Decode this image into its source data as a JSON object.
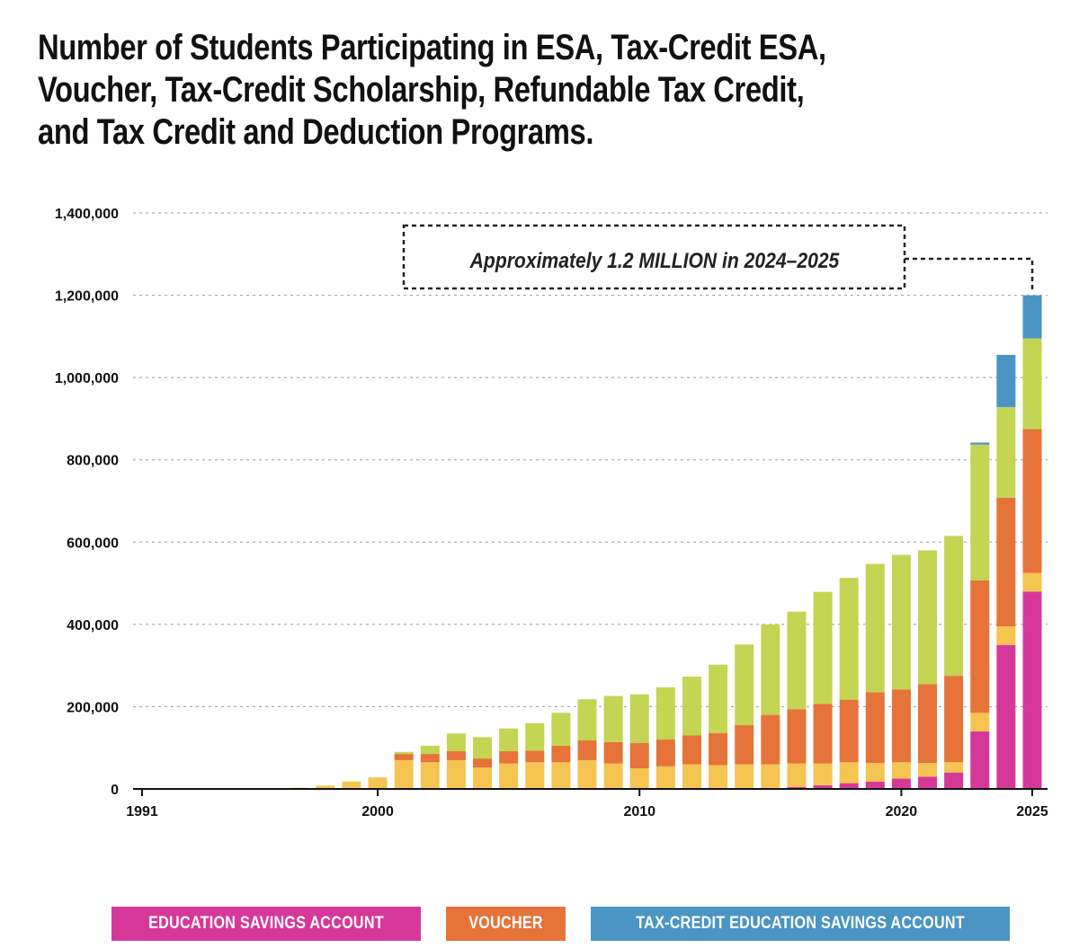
{
  "title": {
    "lines": [
      "Number of Students Participating in ESA, Tax-Credit ESA,",
      "Voucher, Tax-Credit Scholarship, Refundable Tax Credit,",
      "and Tax Credit and Deduction Programs."
    ]
  },
  "annotation": {
    "text": "Approximately 1.2 MILLION in 2024–2025"
  },
  "legend": {
    "items": [
      {
        "label": "EDUCATION SAVINGS ACCOUNT",
        "color": "#d6389a"
      },
      {
        "label": "VOUCHER",
        "color": "#e5733a"
      },
      {
        "label": "TAX-CREDIT EDUCATION SAVINGS ACCOUNT",
        "color": "#4a95c3"
      }
    ]
  },
  "chart_data": {
    "type": "bar",
    "stacked": true,
    "x_tick_labels": [
      "1991",
      "2000",
      "2010",
      "2020",
      "2025"
    ],
    "y_tick_labels": [
      "0",
      "200,000",
      "400,000",
      "600,000",
      "800,000",
      "1,000,000",
      "1,200,000",
      "1,400,000"
    ],
    "ylim": [
      0,
      1400000
    ],
    "grid": true,
    "legend_position": "bottom",
    "categories": [
      1991,
      1992,
      1993,
      1994,
      1995,
      1996,
      1997,
      1998,
      1999,
      2000,
      2001,
      2002,
      2003,
      2004,
      2005,
      2006,
      2007,
      2008,
      2009,
      2010,
      2011,
      2012,
      2013,
      2014,
      2015,
      2016,
      2017,
      2018,
      2019,
      2020,
      2021,
      2022,
      2023,
      2024,
      2025
    ],
    "series": [
      {
        "name": "EDUCATION SAVINGS ACCOUNT",
        "color": "#d6389a",
        "values": [
          0,
          0,
          0,
          0,
          0,
          0,
          0,
          0,
          0,
          0,
          0,
          0,
          0,
          0,
          0,
          0,
          0,
          0,
          0,
          0,
          0,
          0,
          0,
          0,
          0,
          5000,
          9000,
          14000,
          18000,
          25000,
          30000,
          40000,
          140000,
          350000,
          480000
        ]
      },
      {
        "color": "#f5c451",
        "values": [
          1000,
          1000,
          1000,
          1000,
          2000,
          2000,
          3000,
          8000,
          18000,
          28000,
          70000,
          65000,
          70000,
          52000,
          62000,
          65000,
          65000,
          70000,
          62000,
          50000,
          55000,
          60000,
          58000,
          60000,
          60000,
          57000,
          53000,
          51000,
          45000,
          40000,
          33000,
          25000,
          45000,
          45000,
          45000
        ]
      },
      {
        "name": "VOUCHER",
        "color": "#e5733a",
        "values": [
          0,
          0,
          0,
          0,
          0,
          0,
          0,
          0,
          0,
          0,
          15000,
          20000,
          22000,
          22000,
          30000,
          28000,
          40000,
          48000,
          52000,
          62000,
          65000,
          70000,
          78000,
          95000,
          120000,
          132000,
          145000,
          152000,
          172000,
          177000,
          192000,
          210000,
          322000,
          313000,
          350000
        ]
      },
      {
        "color": "#c4d453",
        "values": [
          0,
          0,
          0,
          0,
          0,
          0,
          0,
          0,
          0,
          0,
          5000,
          20000,
          43000,
          52000,
          55000,
          67000,
          80000,
          100000,
          112000,
          118000,
          127000,
          143000,
          166000,
          196000,
          220000,
          237000,
          272000,
          296000,
          312000,
          327000,
          325000,
          340000,
          330000,
          220000,
          220000
        ]
      },
      {
        "name": "TAX-CREDIT EDUCATION SAVINGS ACCOUNT",
        "color": "#4a95c3",
        "values": [
          0,
          0,
          0,
          0,
          0,
          0,
          0,
          0,
          0,
          0,
          0,
          0,
          0,
          0,
          0,
          0,
          0,
          0,
          0,
          0,
          0,
          0,
          0,
          0,
          0,
          0,
          0,
          0,
          0,
          0,
          0,
          0,
          5000,
          127000,
          105000
        ]
      }
    ]
  }
}
